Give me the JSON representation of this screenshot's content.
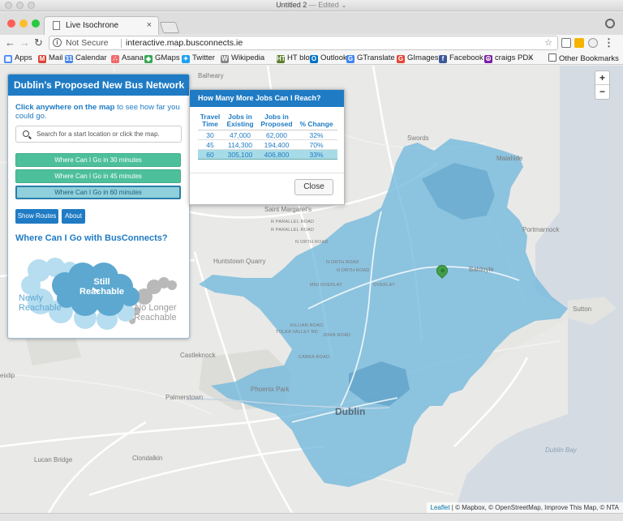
{
  "window": {
    "title": "Untitled 2",
    "edited": "— Edited ⌄"
  },
  "browser": {
    "tab_title": "Live Isochrone",
    "security_label": "Not Secure",
    "url": "interactive.map.busconnects.ie",
    "traffic_colors": [
      "#fe5f57",
      "#febc2e",
      "#28c840"
    ]
  },
  "bookmarks": [
    {
      "label": "Apps",
      "icon": "apps-icon",
      "color": "#4285f4",
      "glyph": "▦"
    },
    {
      "label": "Mail",
      "icon": "gmail-icon",
      "color": "#db4437",
      "glyph": "M"
    },
    {
      "label": "Calendar",
      "icon": "calendar-icon",
      "color": "#4a86e8",
      "glyph": "31"
    },
    {
      "label": "Asana",
      "icon": "asana-icon",
      "color": "#f06a6a",
      "glyph": "∴"
    },
    {
      "label": "GMaps",
      "icon": "maps-icon",
      "color": "#34a853",
      "glyph": "◈"
    },
    {
      "label": "Twitter",
      "icon": "twitter-icon",
      "color": "#1da1f2",
      "glyph": "✦"
    },
    {
      "label": "Wikipedia",
      "icon": "wikipedia-icon",
      "color": "#888888",
      "glyph": "W"
    },
    {
      "label": "HT blog",
      "icon": "ht-blog-icon",
      "color": "#5a7d2a",
      "glyph": "HT"
    },
    {
      "label": "Outlook",
      "icon": "outlook-icon",
      "color": "#0072c6",
      "glyph": "O"
    },
    {
      "label": "GTranslate",
      "icon": "translate-icon",
      "color": "#4285f4",
      "glyph": "G"
    },
    {
      "label": "GImages",
      "icon": "google-icon",
      "color": "#ea4335",
      "glyph": "G"
    },
    {
      "label": "Facebook",
      "icon": "facebook-icon",
      "color": "#3b5998",
      "glyph": "f"
    },
    {
      "label": "craigs PDX",
      "icon": "peace-icon",
      "color": "#7b1fa2",
      "glyph": "☮"
    }
  ],
  "bookmarks_overflow": "»",
  "other_bookmarks": "Other Bookmarks",
  "map": {
    "places": [
      {
        "label": "Balheary",
        "name": "place-balheary"
      },
      {
        "label": "Swords",
        "name": "place-swords"
      },
      {
        "label": "Malahide",
        "name": "place-malahide"
      },
      {
        "label": "Saint Margaret's",
        "name": "place-saint-margarets"
      },
      {
        "label": "Portmarnock",
        "name": "place-portmarnock"
      },
      {
        "label": "Huntstown Quarry",
        "name": "place-huntstown-quarry"
      },
      {
        "label": "Baldoyle",
        "name": "place-baldoyle"
      },
      {
        "label": "Sutton",
        "name": "place-sutton"
      },
      {
        "label": "Castleknock",
        "name": "place-castleknock"
      },
      {
        "label": "Phoenix Park",
        "name": "place-phoenix-park"
      },
      {
        "label": "Palmerstown",
        "name": "place-palmerstown"
      },
      {
        "label": "Dublin",
        "name": "place-dublin"
      },
      {
        "label": "Dublin Bay",
        "name": "place-dublin-bay"
      },
      {
        "label": "Lucan Bridge",
        "name": "place-lucan-bridge"
      },
      {
        "label": "Clondalkin",
        "name": "place-clondalkin"
      },
      {
        "label": "eixlip",
        "name": "place-leixlip"
      }
    ],
    "roads": [
      "R PARALLEL ROAD",
      "R PARALLEL ROAD",
      "N ORTH ROAD",
      "N ORTH ROAD",
      "N ORTH ROAD",
      "M50 OVERLAY",
      "OVERLAY",
      "JOHN ROAD",
      "KILLIAN ROAD",
      "TOLKA VALLEY RD",
      "CABRA ROAD"
    ],
    "zoom_in": "+",
    "zoom_out": "−",
    "attribution": {
      "leaflet": "Leaflet",
      "rest": "| © Mapbox, © OpenStreetMap, Improve This Map, © NTA"
    },
    "isochrone_color": "#6bb6dc",
    "marker_color": "#43a047"
  },
  "panel": {
    "title": "Dublin's Proposed New Bus Network",
    "intro_bold": "Click anywhere on the map",
    "intro_rest": " to see how far you could go.",
    "search_placeholder": "Search for a start location or click the map.",
    "buttons": {
      "go30": "Where Can I Go in 30 minutes",
      "go45": "Where Can I Go in 45 minutes",
      "go60": "Where Can I Go in 60 minutes"
    },
    "show_routes": "Show Routes",
    "about": "About",
    "subtitle": "Where Can I Go with BusConnects?",
    "legend": {
      "newly": "Newly\nReachable",
      "still": "Still\nReachable",
      "no_longer": "No Longer\nReachable"
    }
  },
  "jobs": {
    "title": "How Many More Jobs Can I Reach?",
    "headers": [
      "Travel\nTime",
      "Jobs in\nExisting",
      "Jobs in\nProposed",
      "% Change"
    ],
    "rows": [
      [
        "30",
        "47,000",
        "62,000",
        "32%"
      ],
      [
        "45",
        "114,300",
        "194,400",
        "70%"
      ],
      [
        "60",
        "305,100",
        "406,800",
        "33%"
      ]
    ],
    "close": "Close"
  }
}
